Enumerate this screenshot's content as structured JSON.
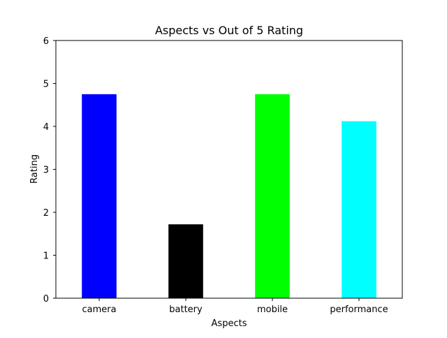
{
  "chart_data": {
    "type": "bar",
    "title": "Aspects vs Out of 5 Rating",
    "xlabel": "Aspects",
    "ylabel": "Rating",
    "categories": [
      "camera",
      "battery",
      "mobile",
      "performance"
    ],
    "values": [
      4.75,
      1.72,
      4.75,
      4.12
    ],
    "colors": [
      "#0000ff",
      "#000000",
      "#00ff00",
      "#00ffff"
    ],
    "ylim": [
      0,
      6
    ],
    "yticks": [
      "0",
      "1",
      "2",
      "3",
      "4",
      "5",
      "6"
    ],
    "grid": false,
    "legend": "none"
  }
}
